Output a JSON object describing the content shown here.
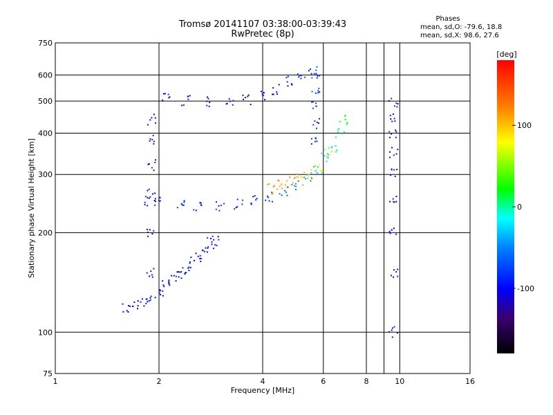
{
  "chart_data": {
    "type": "scatter",
    "title": "Tromsø 20141107 03:38:00-03:39:43",
    "subtitle": "RwPretec (8p)",
    "xlabel": "Frequency [MHz]",
    "ylabel": "Stationary phase Virtual Height [km]",
    "x_scale": "log",
    "y_scale": "log",
    "xlim": [
      1,
      16
    ],
    "ylim": [
      75,
      750
    ],
    "x_ticks": [
      1,
      2,
      4,
      6,
      8,
      10,
      16
    ],
    "x_tick_labels": [
      "1",
      "2",
      "4",
      "6",
      "8",
      "10",
      "16"
    ],
    "y_ticks": [
      75,
      100,
      200,
      300,
      400,
      500,
      600,
      750
    ],
    "y_tick_labels": [
      "75",
      "100",
      "200",
      "300",
      "400",
      "500",
      "600",
      "750"
    ],
    "grid": true,
    "stats": {
      "heading": "Phases",
      "line_o": "mean, sd,O: -79.6, 18.8",
      "line_x": "mean, sd,X:  98.6, 27.6"
    },
    "colorbar": {
      "label": "[deg]",
      "range": [
        -180,
        180
      ],
      "ticks": [
        100,
        0,
        -100
      ],
      "tick_labels": [
        "100",
        "0",
        "-100"
      ]
    },
    "traces": [
      {
        "desc": "O-mode E/F1 low trace",
        "points": [
          [
            1.6,
            118,
            -100
          ],
          [
            1.7,
            121,
            -105
          ],
          [
            1.8,
            124,
            -100
          ],
          [
            1.9,
            128,
            -95
          ],
          [
            2.0,
            132,
            -100
          ],
          [
            2.1,
            138,
            -100
          ],
          [
            2.2,
            144,
            -95
          ],
          [
            2.3,
            150,
            -100
          ],
          [
            2.4,
            156,
            -95
          ],
          [
            2.5,
            162,
            -100
          ],
          [
            2.6,
            170,
            -95
          ],
          [
            2.7,
            178,
            -100
          ],
          [
            2.8,
            186,
            -90
          ],
          [
            2.9,
            190,
            -95
          ]
        ]
      },
      {
        "desc": "F2 O-mode lower trace",
        "points": [
          [
            1.85,
            250,
            -85
          ],
          [
            2.0,
            247,
            -90
          ],
          [
            2.3,
            244,
            -85
          ],
          [
            2.6,
            242,
            -90
          ],
          [
            3.0,
            242,
            -88
          ],
          [
            3.4,
            245,
            -85
          ],
          [
            3.8,
            250,
            -82
          ],
          [
            4.2,
            258,
            -75
          ],
          [
            4.6,
            268,
            -65
          ],
          [
            5.0,
            278,
            -55
          ],
          [
            5.4,
            292,
            -40
          ],
          [
            5.8,
            310,
            -30
          ],
          [
            6.1,
            335,
            -20
          ],
          [
            6.4,
            365,
            -10
          ],
          [
            6.7,
            400,
            0
          ],
          [
            6.9,
            440,
            20
          ]
        ]
      },
      {
        "desc": "F2 X-mode trace",
        "points": [
          [
            4.2,
            272,
            115
          ],
          [
            4.5,
            278,
            120
          ],
          [
            4.8,
            283,
            110
          ],
          [
            5.1,
            290,
            100
          ],
          [
            5.4,
            300,
            90
          ],
          [
            5.8,
            318,
            80
          ],
          [
            6.2,
            345,
            65
          ]
        ]
      },
      {
        "desc": "Multiple-hop upper trace",
        "points": [
          [
            2.1,
            520,
            -95
          ],
          [
            2.4,
            505,
            -100
          ],
          [
            2.8,
            500,
            -100
          ],
          [
            3.2,
            500,
            -95
          ],
          [
            3.6,
            505,
            -100
          ],
          [
            4.0,
            520,
            -95
          ],
          [
            4.4,
            545,
            -100
          ],
          [
            4.8,
            575,
            -95
          ],
          [
            5.2,
            595,
            -90
          ],
          [
            5.6,
            620,
            -80
          ]
        ]
      },
      {
        "desc": "Vertical spread near 1.9 MHz",
        "points": [
          [
            1.9,
            150,
            -100
          ],
          [
            1.9,
            200,
            -95
          ],
          [
            1.9,
            260,
            -100
          ],
          [
            1.9,
            320,
            -95
          ],
          [
            1.9,
            380,
            -100
          ],
          [
            1.9,
            440,
            -95
          ]
        ]
      },
      {
        "desc": "Vertical spread near 5.7 MHz",
        "points": [
          [
            5.7,
            380,
            -90
          ],
          [
            5.7,
            430,
            -85
          ],
          [
            5.7,
            480,
            -80
          ],
          [
            5.7,
            540,
            -75
          ],
          [
            5.7,
            600,
            -70
          ]
        ]
      },
      {
        "desc": "Vertical column near 9.6 MHz",
        "points": [
          [
            9.6,
            100,
            -95
          ],
          [
            9.6,
            150,
            -100
          ],
          [
            9.6,
            200,
            -95
          ],
          [
            9.6,
            250,
            -100
          ],
          [
            9.6,
            300,
            -95
          ],
          [
            9.6,
            350,
            -100
          ],
          [
            9.6,
            400,
            -95
          ],
          [
            9.6,
            450,
            -100
          ],
          [
            9.6,
            500,
            -95
          ]
        ]
      }
    ]
  }
}
